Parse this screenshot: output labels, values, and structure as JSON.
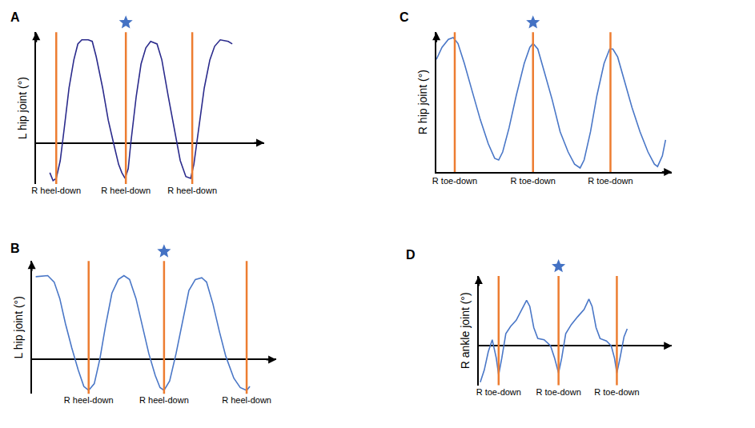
{
  "chart_data": [
    {
      "type": "line",
      "panel": "A",
      "y_label": "L hip joint (°)",
      "x": [
        17,
        21,
        25,
        30,
        35,
        41,
        47,
        52,
        57,
        65,
        70,
        75,
        83,
        90,
        97,
        103,
        107,
        111,
        115,
        118,
        125,
        131,
        137,
        143,
        151,
        157,
        165,
        173,
        180,
        187,
        193,
        197,
        203,
        210,
        217,
        223,
        230,
        240,
        245
      ],
      "series": [
        {
          "color": "#2b2b8c",
          "values": [
            -11.6,
            -14.7,
            -13.8,
            -6.9,
            5.6,
            21.3,
            32.2,
            38.4,
            40,
            40,
            39.4,
            33.4,
            21.3,
            8.8,
            -0.6,
            -8.4,
            -11.6,
            -13.8,
            -10.0,
            -0.6,
            18.1,
            30.6,
            36.9,
            39.4,
            38.4,
            32.2,
            18.1,
            4.1,
            -6.9,
            -13.1,
            -13.8,
            -8.4,
            5.6,
            21.3,
            32.2,
            37.5,
            40,
            39.4,
            38.4
          ]
        }
      ],
      "xlim": [
        0,
        285
      ],
      "ylim": [
        -16,
        43
      ],
      "xticks": [
        {
          "value": 25,
          "label": "R heel-down"
        },
        {
          "value": 112,
          "label": "R heel-down"
        },
        {
          "value": 195,
          "label": "R heel-down"
        }
      ],
      "highlight": 1,
      "tick_labels": "x",
      "grid": false
    },
    {
      "type": "line",
      "panel": "B",
      "y_label": "L hip joint (°)",
      "x": [
        5,
        20,
        28,
        35,
        42,
        50,
        58,
        65,
        71,
        78,
        85,
        92,
        100,
        108,
        115,
        122,
        130,
        138,
        146,
        154,
        160,
        165,
        172,
        180,
        188,
        196,
        204,
        212,
        218,
        226,
        234,
        242,
        252,
        260,
        268,
        272
      ],
      "series": [
        {
          "color": "#4a77c7",
          "values": [
            38.7,
            39.2,
            36.2,
            28.5,
            16.9,
            5.4,
            -4.9,
            -12.6,
            -14.4,
            -11.3,
            0.3,
            15.6,
            31.0,
            37.4,
            39.2,
            37.4,
            28.5,
            15.6,
            2.8,
            -7.4,
            -13.1,
            -14.4,
            -10.0,
            2.8,
            18.2,
            32.3,
            37.4,
            38.2,
            36.2,
            25.9,
            13.1,
            1.5,
            -8.7,
            -13.1,
            -14.4,
            -12.6
          ]
        }
      ],
      "xlim": [
        0,
        305
      ],
      "ylim": [
        -16,
        46
      ],
      "xticks": [
        {
          "value": 71,
          "label": "R heel-down"
        },
        {
          "value": 165,
          "label": "R heel-down"
        },
        {
          "value": 268,
          "label": "R heel-down"
        }
      ],
      "highlight": 1,
      "tick_labels": "x",
      "grid": false
    },
    {
      "type": "line",
      "panel": "C",
      "y_label": "R hip joint (°)",
      "x": [
        0,
        7,
        15,
        21,
        27,
        35,
        45,
        55,
        65,
        73,
        78,
        83,
        91,
        100,
        110,
        117,
        121,
        127,
        135,
        145,
        155,
        165,
        173,
        180,
        185,
        193,
        201,
        210,
        217,
        221,
        227,
        235,
        245,
        255,
        265,
        273,
        277,
        283,
        287
      ],
      "series": [
        {
          "color": "#4a77c7",
          "values": [
            46.7,
            51.7,
            55,
            55.7,
            53.3,
            45,
            33.3,
            21.7,
            11.7,
            5.7,
            5,
            8.3,
            18.3,
            31.7,
            45,
            51.7,
            53.3,
            51,
            41.7,
            30,
            16.7,
            8.3,
            3.3,
            1.7,
            5,
            16.7,
            31.7,
            45,
            51,
            51,
            47.7,
            38.3,
            26.7,
            16.7,
            8.3,
            3.3,
            2.3,
            6.7,
            13.3
          ]
        }
      ],
      "xlim": [
        0,
        295
      ],
      "ylim": [
        0,
        58
      ],
      "xticks": [
        {
          "value": 23,
          "label": "R toe-down"
        },
        {
          "value": 121,
          "label": "R toe-down"
        },
        {
          "value": 218,
          "label": "R toe-down"
        }
      ],
      "highlight": 1,
      "tick_labels": "x",
      "grid": false
    },
    {
      "type": "line",
      "panel": "D",
      "y_label": "R ankle joint (°)",
      "x": [
        2,
        7,
        12,
        17,
        22,
        25,
        29,
        34,
        40,
        47,
        54,
        60,
        64,
        69,
        74,
        82,
        90,
        95,
        100,
        104,
        109,
        116,
        124,
        132,
        138,
        142,
        147,
        152,
        160,
        166,
        170,
        173,
        177,
        182,
        186
      ],
      "series": [
        {
          "color": "#4a77c7",
          "values": [
            -24,
            -16,
            -4,
            4,
            -8,
            -19.2,
            -8,
            8,
            12.8,
            16.8,
            24,
            30,
            26,
            12,
            4.8,
            4,
            0,
            -8,
            -18,
            -8,
            8,
            14,
            19.2,
            24,
            30.8,
            26,
            12,
            4.8,
            3.2,
            0,
            -8,
            -18,
            -8,
            6,
            11.2
          ]
        }
      ],
      "xlim": [
        0,
        242
      ],
      "ylim": [
        -26,
        46
      ],
      "xticks": [
        {
          "value": 25,
          "label": "R toe-down"
        },
        {
          "value": 100,
          "label": "R toe-down"
        },
        {
          "value": 173,
          "label": "R toe-down"
        }
      ],
      "highlight": 1,
      "tick_labels": "x",
      "grid": false
    }
  ]
}
